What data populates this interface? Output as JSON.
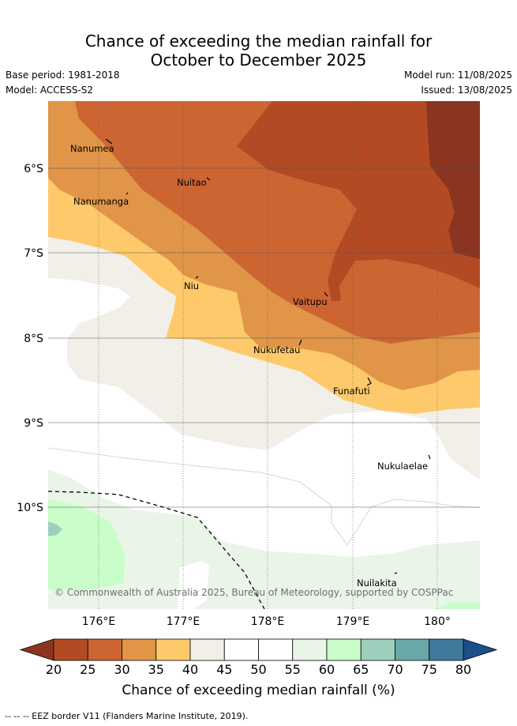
{
  "title": {
    "line1": "Chance of exceeding the median rainfall for",
    "line2": "October to December 2025"
  },
  "meta": {
    "base_period": "Base period: 1981-2018",
    "model": "Model: ACCESS-S2",
    "model_run": "Model run: 11/08/2025",
    "issued": "Issued: 13/08/2025"
  },
  "map": {
    "lat_ticks": [
      "6°S",
      "7°S",
      "8°S",
      "9°S",
      "10°S"
    ],
    "lon_ticks": [
      "176°E",
      "177°E",
      "178°E",
      "179°E",
      "180°"
    ],
    "places": [
      "Nanumea",
      "Nuitao",
      "Nanumanga",
      "Niu",
      "Vaitupu",
      "Nukufetau",
      "Funafuti",
      "Nukulaelae",
      "Nuilakita"
    ],
    "copyright": "© Commonwealth of Australia 2025, Bureau of Meteorology, supported by COSPPac"
  },
  "colorbar": {
    "ticks": [
      "20",
      "25",
      "30",
      "35",
      "40",
      "45",
      "50",
      "55",
      "60",
      "65",
      "70",
      "75",
      "80"
    ],
    "colors": [
      "#b34a23",
      "#cd6533",
      "#e09548",
      "#fdc96a",
      "#f2efe9",
      "#ffffff",
      "#ffffff",
      "#e9f5e7",
      "#c9fdc9",
      "#9ccfbc",
      "#6aa7a8",
      "#3f7a9c"
    ],
    "low_color": "#8b3520",
    "high_color": "#1a4f88",
    "label": "Chance of exceeding median rainfall (%)"
  },
  "footer": "-- -- -- EEZ border V11 (Flanders Marine Institute, 2019)."
}
